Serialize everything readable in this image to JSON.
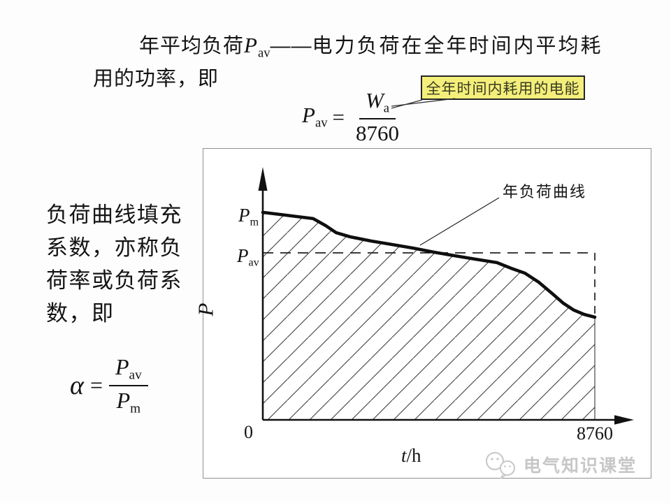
{
  "intro": {
    "line1_pre": "年平均负荷",
    "p_main": "P",
    "p_sub": "av",
    "dash": "——",
    "line1_post": "电力负荷在全年时间内平均耗",
    "line2": "用的功率，即"
  },
  "formula_pav": {
    "lhs_main": "P",
    "lhs_sub": "av",
    "equals": "=",
    "num_main": "W",
    "num_sub": "a",
    "denominator": "8760"
  },
  "callout": {
    "text": "全年时间内耗用的电能",
    "bg_color": "#f4ef7b",
    "border_color": "#262626"
  },
  "left_text": {
    "lines": [
      "负荷曲线填充",
      "系数，亦称负",
      "荷率或负荷系",
      "数，即"
    ]
  },
  "formula_alpha": {
    "lhs": "α",
    "equals": "=",
    "num_main": "P",
    "num_sub": "av",
    "den_main": "P",
    "den_sub": "m"
  },
  "chart": {
    "curve_label": "年负荷曲线",
    "y_axis_label": "P",
    "x_axis_label_main": "t",
    "x_axis_label_unit": "/h",
    "origin_label": "0",
    "x_max_label": "8760",
    "pm_main": "P",
    "pm_sub": "m",
    "pav_main": "P",
    "pav_sub": "av",
    "curve_color": "#0f0f0f",
    "hatch_color": "#3c3c3c"
  },
  "chart_data": {
    "type": "line",
    "title": "年负荷曲线",
    "xlabel": "t/h",
    "ylabel": "P",
    "xlim": [
      0,
      8760
    ],
    "x_tick_labels": [
      "0",
      "8760"
    ],
    "y_reference_lines": [
      {
        "label": "Pm",
        "value": 1.0,
        "style": "tick"
      },
      {
        "label": "Pav",
        "value": 0.805,
        "style": "dashed"
      }
    ],
    "x": [
      0,
      461,
      1328,
      1660,
      1936,
      2305,
      2858,
      3412,
      3965,
      4518,
      5072,
      5625,
      6178,
      6547,
      6916,
      7285,
      7654,
      7930,
      8207,
      8484,
      8760
    ],
    "y": [
      1.0,
      0.99,
      0.97,
      0.936,
      0.902,
      0.882,
      0.862,
      0.845,
      0.828,
      0.808,
      0.791,
      0.774,
      0.758,
      0.731,
      0.707,
      0.663,
      0.606,
      0.562,
      0.529,
      0.508,
      0.495
    ],
    "y_unit": "fraction of Pm",
    "area_under_curve": "hatched",
    "annotations": [
      "年负荷曲线 points to curve",
      "dashed rectangle from Pav level to t=8760"
    ]
  },
  "watermark": {
    "text": "电气知识课堂"
  }
}
